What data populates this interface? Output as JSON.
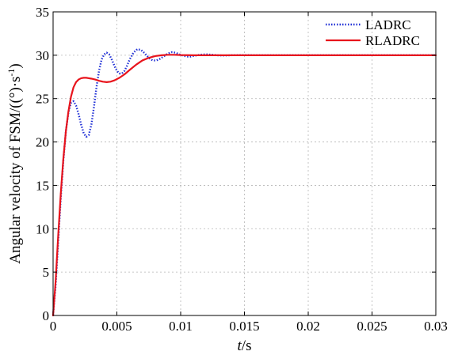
{
  "chart_data": {
    "type": "line",
    "xlabel_italic": "t",
    "xlabel_unit": "/s",
    "ylabel_main": "Angular velocity of FSM/((°)·s",
    "ylabel_sup": "-1",
    "ylabel_close": ")",
    "xlim": [
      0,
      0.03
    ],
    "ylim": [
      0,
      35
    ],
    "xticks": [
      0,
      0.005,
      0.01,
      0.015,
      0.02,
      0.025,
      0.03
    ],
    "xtick_labels": [
      "0",
      "0.005",
      "0.01",
      "0.015",
      "0.02",
      "0.025",
      "0.03"
    ],
    "yticks": [
      0,
      5,
      10,
      15,
      20,
      25,
      30,
      35
    ],
    "ytick_labels": [
      "0",
      "5",
      "10",
      "15",
      "20",
      "25",
      "30",
      "35"
    ],
    "grid": true,
    "legend_position": "top-right",
    "series": [
      {
        "name": "LADRC",
        "color": "#1f2fd6",
        "style": "dotted",
        "x": [
          0,
          0.0002,
          0.0004,
          0.0006,
          0.0008,
          0.001,
          0.0012,
          0.0014,
          0.0016,
          0.0018,
          0.002,
          0.0022,
          0.0024,
          0.0026,
          0.0028,
          0.003,
          0.0032,
          0.0034,
          0.0036,
          0.0038,
          0.004,
          0.0042,
          0.0044,
          0.0046,
          0.0048,
          0.005,
          0.0052,
          0.0054,
          0.0056,
          0.0058,
          0.006,
          0.0063,
          0.0066,
          0.0069,
          0.0072,
          0.0075,
          0.0078,
          0.0081,
          0.0084,
          0.0087,
          0.009,
          0.0093,
          0.0096,
          0.0099,
          0.0102,
          0.0105,
          0.0108,
          0.0111,
          0.0115,
          0.012,
          0.0125,
          0.013,
          0.0135,
          0.014,
          0.015,
          0.016,
          0.017,
          0.018,
          0.02,
          0.025,
          0.03
        ],
        "y": [
          0,
          3.5,
          8.5,
          13.5,
          17.8,
          21.2,
          23.4,
          24.5,
          24.7,
          24.2,
          23.2,
          22.0,
          21.0,
          20.6,
          20.8,
          22.0,
          24.0,
          26.3,
          28.2,
          29.5,
          30.1,
          30.3,
          30.1,
          29.5,
          28.8,
          28.2,
          27.9,
          27.9,
          28.2,
          28.8,
          29.5,
          30.3,
          30.7,
          30.6,
          30.2,
          29.7,
          29.4,
          29.4,
          29.6,
          29.9,
          30.2,
          30.35,
          30.3,
          30.1,
          29.95,
          29.85,
          29.85,
          29.95,
          30.05,
          30.1,
          30.05,
          29.98,
          29.97,
          30.0,
          30.02,
          30.0,
          30.0,
          30.0,
          30.0,
          30.0,
          30.0
        ]
      },
      {
        "name": "RLADRC",
        "color": "#e8141c",
        "style": "solid",
        "x": [
          0,
          0.0002,
          0.0004,
          0.0006,
          0.0008,
          0.001,
          0.0012,
          0.0014,
          0.0016,
          0.0018,
          0.002,
          0.0022,
          0.0024,
          0.0026,
          0.0028,
          0.003,
          0.0033,
          0.0036,
          0.0039,
          0.0042,
          0.0045,
          0.0048,
          0.0052,
          0.0056,
          0.006,
          0.0065,
          0.007,
          0.0075,
          0.008,
          0.0085,
          0.009,
          0.0095,
          0.01,
          0.011,
          0.012,
          0.014,
          0.016,
          0.02,
          0.025,
          0.03
        ],
        "y": [
          0,
          4.0,
          9.2,
          14.0,
          18.0,
          21.2,
          23.5,
          25.2,
          26.3,
          26.9,
          27.2,
          27.35,
          27.4,
          27.4,
          27.35,
          27.3,
          27.2,
          27.05,
          26.95,
          26.9,
          26.95,
          27.1,
          27.4,
          27.8,
          28.3,
          28.9,
          29.4,
          29.7,
          29.9,
          30.0,
          30.05,
          30.05,
          30.02,
          30.0,
          30.0,
          30.0,
          30.0,
          30.0,
          30.0,
          30.0
        ]
      }
    ]
  }
}
